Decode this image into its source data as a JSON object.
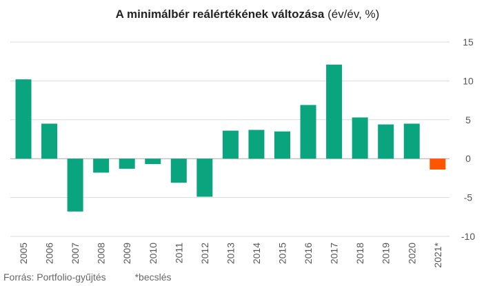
{
  "chart_data": {
    "type": "bar",
    "title_main": "A minimálbér reálértékének változása",
    "title_suffix": "(év/év, %)",
    "categories": [
      "2005",
      "2006",
      "2007",
      "2008",
      "2009",
      "2010",
      "2011",
      "2012",
      "2013",
      "2014",
      "2015",
      "2016",
      "2017",
      "2018",
      "2019",
      "2020",
      "2021*"
    ],
    "values": [
      10.2,
      4.5,
      -6.8,
      -1.8,
      -1.3,
      -0.7,
      -3.1,
      -4.9,
      3.6,
      3.7,
      3.5,
      6.9,
      12.1,
      5.3,
      4.4,
      4.5,
      -1.4
    ],
    "highlight_index": 16,
    "ylim": [
      -10,
      15
    ],
    "yticks": [
      "15",
      "10",
      "5",
      "0",
      "-5",
      "-10"
    ],
    "grid": true,
    "colors": {
      "bar": "#0aa57f",
      "highlight": "#ff5500",
      "grid": "#d9d9d9",
      "zero": "#aaaaaa"
    }
  },
  "footer": {
    "source": "Forrás: Portfolio-gyűjtés",
    "note": "*becslés"
  }
}
